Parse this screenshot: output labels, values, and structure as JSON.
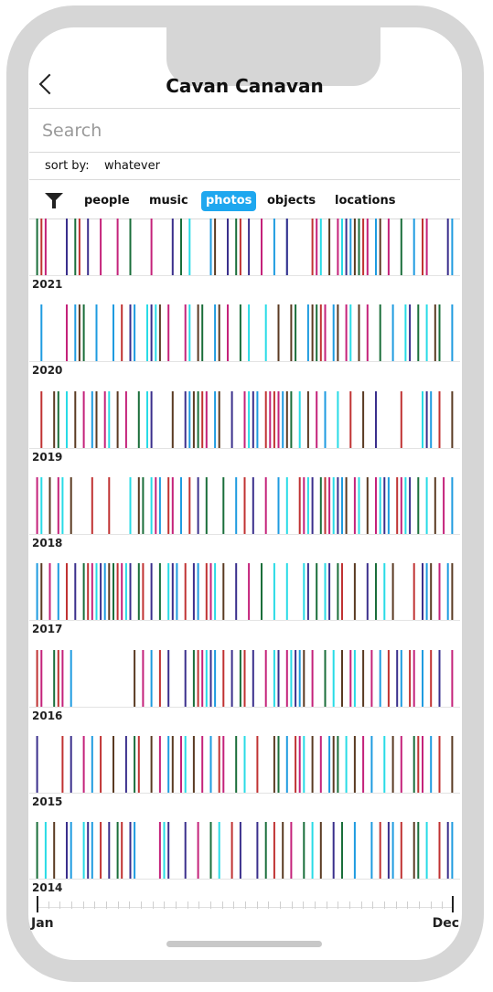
{
  "header": {
    "title": "Cavan Canavan"
  },
  "search": {
    "placeholder": "Search"
  },
  "sort": {
    "label": "sort by:",
    "value": "whatever"
  },
  "filters": {
    "tabs": [
      {
        "label": "people",
        "active": false
      },
      {
        "label": "music",
        "active": false
      },
      {
        "label": "photos",
        "active": true
      },
      {
        "label": "objects",
        "active": false
      },
      {
        "label": "locations",
        "active": false
      }
    ]
  },
  "colors": {
    "accent": "#1ea7ef",
    "palette": [
      "#1e9be0",
      "#1a6e3a",
      "#c4227a",
      "#3a2f8c",
      "#5a3a22",
      "#c03232",
      "#28dbe6"
    ]
  },
  "timeline": {
    "years": [
      {
        "label": "2021",
        "events": [
          0.01,
          0.02,
          0.03,
          0.08,
          0.1,
          0.11,
          0.13,
          0.16,
          0.2,
          0.23,
          0.28,
          0.33,
          0.35,
          0.37,
          0.42,
          0.43,
          0.46,
          0.48,
          0.49,
          0.51,
          0.54,
          0.57,
          0.6,
          0.6,
          0.66,
          0.67,
          0.68,
          0.7,
          0.72,
          0.73,
          0.74,
          0.75,
          0.76,
          0.77,
          0.78,
          0.79,
          0.81,
          0.82,
          0.84,
          0.87,
          0.9,
          0.92,
          0.93,
          0.98,
          0.99
        ]
      },
      {
        "label": "2020",
        "events": [
          0.02,
          0.08,
          0.1,
          0.11,
          0.12,
          0.15,
          0.19,
          0.21,
          0.23,
          0.24,
          0.27,
          0.28,
          0.29,
          0.3,
          0.32,
          0.36,
          0.37,
          0.39,
          0.4,
          0.43,
          0.44,
          0.46,
          0.49,
          0.51,
          0.55,
          0.58,
          0.61,
          0.62,
          0.65,
          0.66,
          0.67,
          0.68,
          0.69,
          0.71,
          0.72,
          0.74,
          0.75,
          0.77,
          0.79,
          0.82,
          0.85,
          0.88,
          0.89,
          0.91,
          0.93,
          0.95,
          0.96,
          0.99
        ]
      },
      {
        "label": "2019",
        "events": [
          0.02,
          0.05,
          0.06,
          0.08,
          0.1,
          0.12,
          0.14,
          0.15,
          0.17,
          0.18,
          0.2,
          0.22,
          0.25,
          0.27,
          0.28,
          0.33,
          0.36,
          0.37,
          0.38,
          0.39,
          0.4,
          0.41,
          0.43,
          0.44,
          0.47,
          0.5,
          0.51,
          0.52,
          0.53,
          0.55,
          0.56,
          0.57,
          0.58,
          0.59,
          0.6,
          0.61,
          0.63,
          0.65,
          0.67,
          0.69,
          0.72,
          0.75,
          0.78,
          0.81,
          0.87,
          0.92,
          0.93,
          0.94,
          0.96,
          0.99
        ]
      },
      {
        "label": "2018",
        "events": [
          0.01,
          0.02,
          0.04,
          0.06,
          0.07,
          0.09,
          0.14,
          0.18,
          0.23,
          0.25,
          0.26,
          0.28,
          0.29,
          0.3,
          0.32,
          0.33,
          0.35,
          0.37,
          0.39,
          0.41,
          0.45,
          0.48,
          0.5,
          0.52,
          0.55,
          0.58,
          0.6,
          0.63,
          0.64,
          0.65,
          0.66,
          0.68,
          0.69,
          0.7,
          0.71,
          0.72,
          0.73,
          0.74,
          0.76,
          0.77,
          0.79,
          0.81,
          0.82,
          0.83,
          0.84,
          0.86,
          0.87,
          0.88,
          0.89,
          0.91,
          0.93,
          0.95,
          0.97,
          0.99
        ]
      },
      {
        "label": "2017",
        "events": [
          0.01,
          0.02,
          0.04,
          0.06,
          0.08,
          0.1,
          0.12,
          0.13,
          0.14,
          0.15,
          0.16,
          0.17,
          0.18,
          0.19,
          0.2,
          0.21,
          0.22,
          0.23,
          0.25,
          0.26,
          0.28,
          0.3,
          0.32,
          0.33,
          0.34,
          0.36,
          0.38,
          0.39,
          0.41,
          0.42,
          0.43,
          0.45,
          0.48,
          0.51,
          0.54,
          0.57,
          0.6,
          0.64,
          0.65,
          0.67,
          0.69,
          0.7,
          0.72,
          0.73,
          0.76,
          0.79,
          0.81,
          0.83,
          0.85,
          0.9,
          0.92,
          0.93,
          0.94,
          0.96,
          0.98,
          0.99
        ]
      },
      {
        "label": "2016",
        "events": [
          0.01,
          0.02,
          0.05,
          0.06,
          0.07,
          0.09,
          0.24,
          0.26,
          0.28,
          0.3,
          0.32,
          0.36,
          0.38,
          0.39,
          0.4,
          0.41,
          0.42,
          0.43,
          0.45,
          0.47,
          0.49,
          0.5,
          0.52,
          0.55,
          0.57,
          0.58,
          0.6,
          0.61,
          0.62,
          0.63,
          0.64,
          0.66,
          0.69,
          0.71,
          0.73,
          0.75,
          0.76,
          0.78,
          0.8,
          0.82,
          0.84,
          0.86,
          0.87,
          0.89,
          0.9,
          0.92,
          0.94,
          0.96,
          0.99
        ]
      },
      {
        "label": "2015",
        "events": [
          0.01,
          0.07,
          0.09,
          0.12,
          0.14,
          0.16,
          0.19,
          0.22,
          0.24,
          0.25,
          0.28,
          0.3,
          0.32,
          0.33,
          0.35,
          0.36,
          0.38,
          0.4,
          0.42,
          0.44,
          0.45,
          0.48,
          0.5,
          0.53,
          0.57,
          0.58,
          0.6,
          0.62,
          0.63,
          0.64,
          0.66,
          0.68,
          0.7,
          0.71,
          0.72,
          0.74,
          0.76,
          0.78,
          0.8,
          0.83,
          0.85,
          0.87,
          0.9,
          0.91,
          0.92,
          0.94,
          0.96,
          0.99
        ]
      },
      {
        "label": "2014",
        "events": [
          0.01,
          0.03,
          0.05,
          0.08,
          0.09,
          0.12,
          0.13,
          0.14,
          0.16,
          0.18,
          0.2,
          0.21,
          0.23,
          0.24,
          0.3,
          0.31,
          0.32,
          0.36,
          0.39,
          0.42,
          0.44,
          0.47,
          0.49,
          0.53,
          0.55,
          0.57,
          0.59,
          0.61,
          0.64,
          0.66,
          0.68,
          0.71,
          0.73,
          0.76,
          0.8,
          0.82,
          0.84,
          0.85,
          0.87,
          0.9,
          0.91,
          0.93,
          0.96,
          0.98,
          0.99
        ]
      }
    ]
  },
  "axis": {
    "start_label": "Jan",
    "end_label": "Dec",
    "ticks": 36
  }
}
